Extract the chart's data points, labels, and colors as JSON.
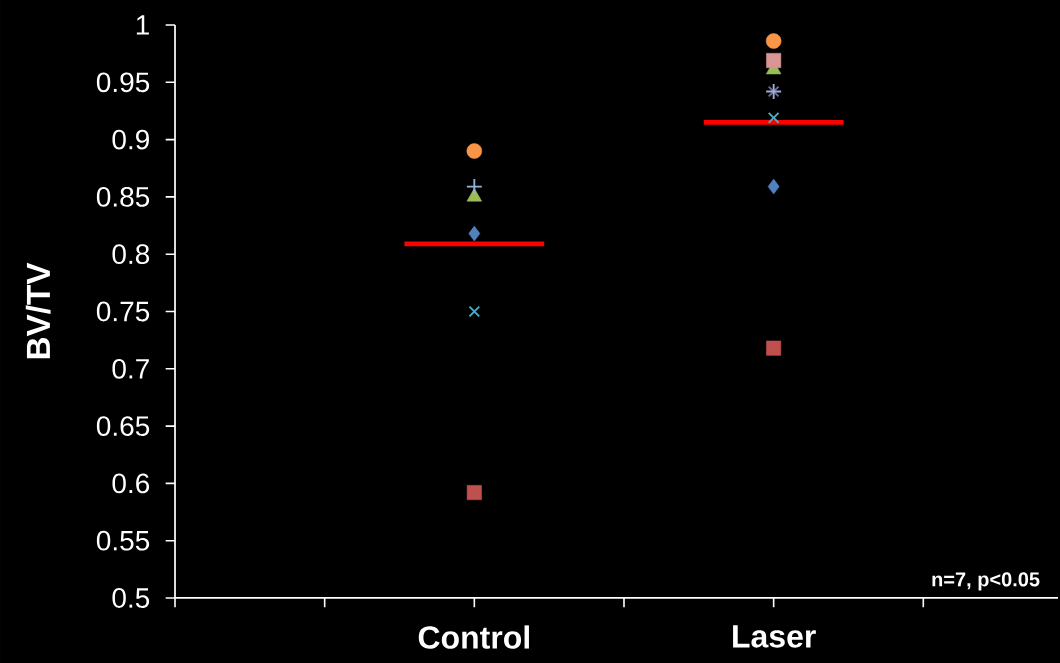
{
  "chart_data": {
    "type": "scatter",
    "ylabel": "BV/TV",
    "categories": [
      null,
      null,
      "Control",
      null,
      "Laser",
      null
    ],
    "ylim": [
      0.5,
      1
    ],
    "yticks": [
      0.5,
      0.55,
      0.6,
      0.65,
      0.7,
      0.75,
      0.8,
      0.85,
      0.9,
      0.95,
      1
    ],
    "grid": false,
    "legend": false,
    "series": [
      {
        "color": "#4f81bd",
        "marker": "diamond",
        "values": [
          null,
          null,
          0.818,
          null,
          0.859,
          null
        ]
      },
      {
        "color": "#c0504d",
        "marker": "square",
        "values": [
          null,
          null,
          0.592,
          null,
          0.718,
          null
        ]
      },
      {
        "color": "#9bbb59",
        "marker": "triangle",
        "values": [
          null,
          null,
          0.85,
          null,
          0.961,
          null
        ]
      },
      {
        "color": "#8064a2",
        "marker": "cross",
        "values": [
          null,
          null,
          null,
          null,
          0.942,
          null
        ]
      },
      {
        "color": "#4bacc6",
        "marker": "cross",
        "values": [
          null,
          null,
          0.75,
          null,
          0.919,
          null
        ]
      },
      {
        "color": "#f79646",
        "marker": "circle",
        "values": [
          null,
          null,
          0.89,
          null,
          0.986,
          null
        ]
      },
      {
        "color": "#95b3d7",
        "marker": "plus",
        "values": [
          null,
          null,
          0.859,
          null,
          0.942,
          null
        ]
      },
      {
        "color": "#d99694",
        "marker": "square",
        "values": [
          null,
          null,
          null,
          null,
          0.969,
          null
        ]
      }
    ],
    "ref_lines": [
      {
        "axis": "y",
        "value": 0.809,
        "color": "#ff0000"
      },
      {
        "axis": "y",
        "value": 0.915,
        "color": "#ff0000"
      }
    ],
    "annotations": [
      "n=7, p<0.05"
    ]
  }
}
